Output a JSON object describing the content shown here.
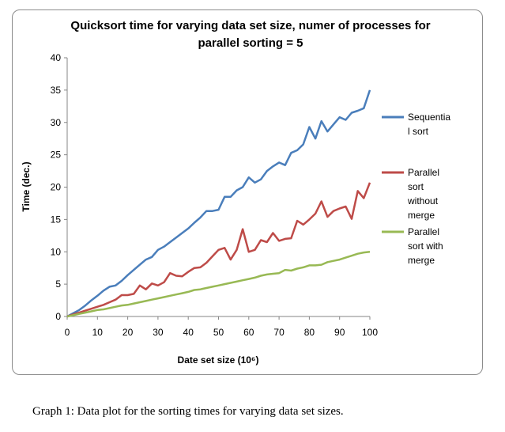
{
  "chart_data": {
    "type": "line",
    "title_lines": [
      "Quicksort time for varying data set size, numer of processes for",
      "parallel sorting = 5"
    ],
    "xlabel": "Date set size (10⁶)",
    "ylabel": "Time (dec.)",
    "xlim": [
      0,
      100
    ],
    "ylim": [
      0,
      40
    ],
    "x_ticks": [
      "0",
      "10",
      "20",
      "30",
      "40",
      "50",
      "60",
      "70",
      "80",
      "90",
      "100"
    ],
    "y_ticks": [
      "0",
      "5",
      "10",
      "15",
      "20",
      "25",
      "30",
      "35",
      "40"
    ],
    "grid": false,
    "legend_position": "right",
    "x": [
      2,
      4,
      6,
      8,
      10,
      12,
      14,
      16,
      18,
      20,
      22,
      24,
      26,
      28,
      30,
      32,
      34,
      36,
      38,
      40,
      42,
      44,
      46,
      48,
      50,
      52,
      54,
      56,
      58,
      60,
      62,
      64,
      66,
      68,
      70,
      72,
      74,
      76,
      78,
      80,
      82,
      84,
      86,
      88,
      90,
      92,
      94,
      96,
      98,
      100
    ],
    "series": [
      {
        "name_lines": [
          "Sequentia",
          "l sort"
        ],
        "color": "#4a7ebb",
        "values": [
          0.5,
          1.0,
          1.7,
          2.5,
          3.2,
          4.0,
          4.6,
          4.8,
          5.5,
          6.4,
          7.2,
          8.0,
          8.8,
          9.2,
          10.3,
          10.8,
          11.5,
          12.2,
          12.9,
          13.6,
          14.5,
          15.3,
          16.3,
          16.3,
          16.5,
          18.5,
          18.5,
          19.5,
          20.0,
          21.5,
          20.7,
          21.2,
          22.5,
          23.2,
          23.8,
          23.4,
          25.3,
          25.7,
          26.6,
          29.3,
          27.5,
          30.2,
          28.6,
          29.7,
          30.8,
          30.4,
          31.5,
          31.8,
          32.2,
          35.0
        ]
      },
      {
        "name_lines": [
          "Parallel",
          "sort",
          "without",
          "merge"
        ],
        "color": "#be4b48",
        "values": [
          0.3,
          0.6,
          0.9,
          1.2,
          1.5,
          1.8,
          2.2,
          2.6,
          3.3,
          3.3,
          3.5,
          4.8,
          4.2,
          5.1,
          4.8,
          5.3,
          6.7,
          6.3,
          6.2,
          6.9,
          7.5,
          7.6,
          8.3,
          9.3,
          10.3,
          10.6,
          8.8,
          10.3,
          13.5,
          10.0,
          10.3,
          11.8,
          11.5,
          12.9,
          11.7,
          12.0,
          12.1,
          14.8,
          14.2,
          15.0,
          15.9,
          17.8,
          15.4,
          16.3,
          16.7,
          17.0,
          15.1,
          19.4,
          18.3,
          20.7
        ]
      },
      {
        "name_lines": [
          "Parallel",
          "sort with",
          "merge"
        ],
        "color": "#98b954",
        "values": [
          0.2,
          0.4,
          0.6,
          0.8,
          1.0,
          1.1,
          1.3,
          1.5,
          1.7,
          1.8,
          2.0,
          2.2,
          2.4,
          2.6,
          2.8,
          3.0,
          3.2,
          3.4,
          3.6,
          3.8,
          4.1,
          4.2,
          4.4,
          4.6,
          4.8,
          5.0,
          5.2,
          5.4,
          5.6,
          5.8,
          6.0,
          6.3,
          6.5,
          6.6,
          6.7,
          7.2,
          7.1,
          7.4,
          7.6,
          7.9,
          7.9,
          8.0,
          8.4,
          8.6,
          8.8,
          9.1,
          9.4,
          9.7,
          9.9,
          10.0
        ]
      }
    ]
  },
  "caption": "Graph 1: Data plot for the sorting times for varying data set sizes."
}
